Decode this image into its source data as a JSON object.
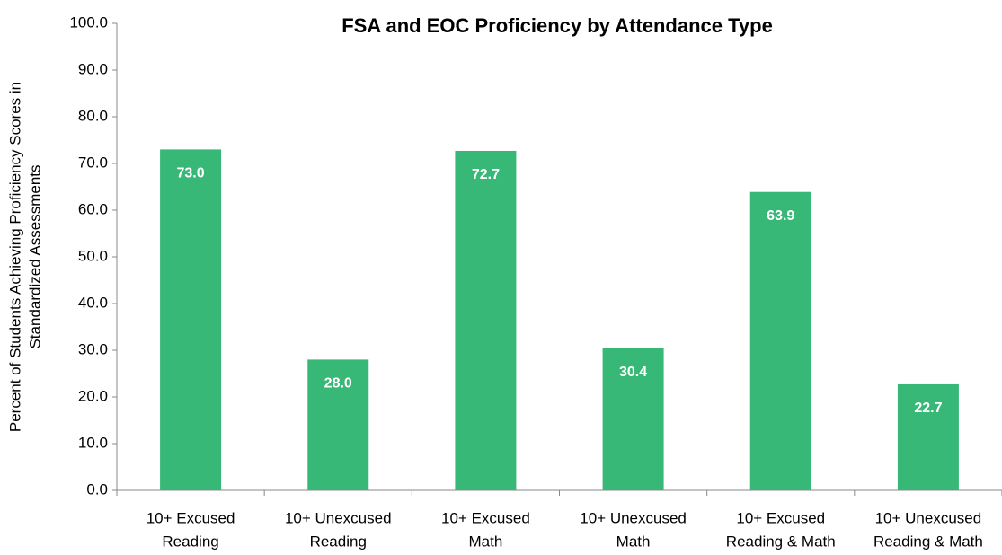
{
  "chart_data": {
    "type": "bar",
    "title": "FSA and EOC Proficiency by Attendance Type",
    "ylabel": [
      "Percent of Students Achieving Proficiency Scores in",
      "Standardized Assessments"
    ],
    "categories": [
      [
        "10+ Excused",
        "Reading"
      ],
      [
        "10+ Unexcused",
        "Reading"
      ],
      [
        "10+ Excused",
        "Math"
      ],
      [
        "10+ Unexcused",
        "Math"
      ],
      [
        "10+ Excused",
        "Reading & Math"
      ],
      [
        "10+ Unexcused",
        "Reading & Math"
      ]
    ],
    "values": [
      73.0,
      28.0,
      72.7,
      30.4,
      63.9,
      22.7
    ],
    "value_labels": [
      "73.0",
      "28.0",
      "72.7",
      "30.4",
      "63.9",
      "22.7"
    ],
    "color": "#38b877",
    "ylim": [
      0,
      100
    ],
    "yticks": [
      {
        "value": 0,
        "label": "0.0"
      },
      {
        "value": 10,
        "label": "10.0"
      },
      {
        "value": 20,
        "label": "20.0"
      },
      {
        "value": 30,
        "label": "30.0"
      },
      {
        "value": 40,
        "label": "40.0"
      },
      {
        "value": 50,
        "label": "50.0"
      },
      {
        "value": 60,
        "label": "60.0"
      },
      {
        "value": 70,
        "label": "70.0"
      },
      {
        "value": 80,
        "label": "80.0"
      },
      {
        "value": 90,
        "label": "90.0"
      },
      {
        "value": 100,
        "label": "100.0"
      }
    ],
    "grid": false
  }
}
